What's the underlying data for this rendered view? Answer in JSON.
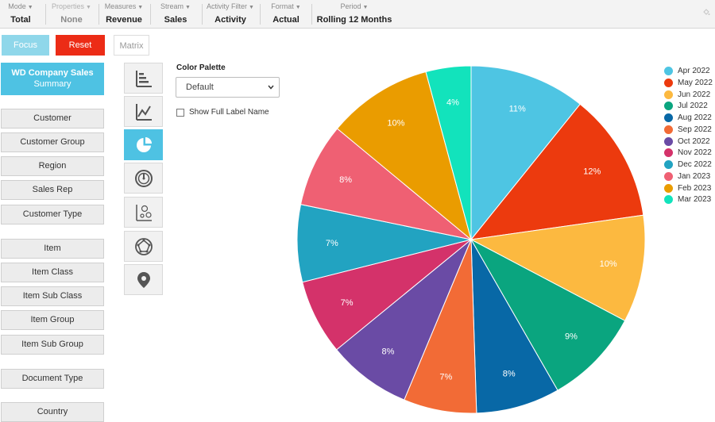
{
  "toolbar": {
    "items": [
      {
        "label": "Mode",
        "value": "Total",
        "disabled": false
      },
      {
        "label": "Properties",
        "value": "None",
        "disabled": true
      },
      {
        "label": "Measures",
        "value": "Revenue",
        "disabled": false
      },
      {
        "label": "Stream",
        "value": "Sales",
        "disabled": false
      },
      {
        "label": "Activity Filter",
        "value": "Activity",
        "disabled": false
      },
      {
        "label": "Format",
        "value": "Actual",
        "disabled": false
      },
      {
        "label": "Period",
        "value": "Rolling 12 Months",
        "disabled": false
      }
    ]
  },
  "buttons": {
    "focus": "Focus",
    "reset": "Reset",
    "matrix": "Matrix"
  },
  "summary": {
    "line1": "WD Company Sales",
    "line2": "Summary"
  },
  "dimensions": {
    "group1": [
      "Customer",
      "Customer Group",
      "Region",
      "Sales Rep",
      "Customer Type"
    ],
    "group2": [
      "Item",
      "Item Class",
      "Item Sub Class",
      "Item Group",
      "Item Sub Group"
    ],
    "group3": [
      "Document Type"
    ],
    "group4": [
      "Country"
    ]
  },
  "chart_types": [
    {
      "icon": "bar-chart-icon",
      "active": false
    },
    {
      "icon": "line-chart-icon",
      "active": false
    },
    {
      "icon": "pie-chart-icon",
      "active": true
    },
    {
      "icon": "gauge-icon",
      "active": false
    },
    {
      "icon": "scatter-chart-icon",
      "active": false
    },
    {
      "icon": "radar-chart-icon",
      "active": false
    },
    {
      "icon": "map-pin-icon",
      "active": false
    }
  ],
  "palette": {
    "label": "Color Palette",
    "selected": "Default"
  },
  "show_full_label": {
    "label": "Show Full Label Name",
    "checked": false
  },
  "chart_data": {
    "type": "pie",
    "categories": [
      "Apr 2022",
      "May 2022",
      "Jun 2022",
      "Jul 2022",
      "Aug 2022",
      "Sep 2022",
      "Oct 2022",
      "Nov 2022",
      "Dec 2022",
      "Jan 2023",
      "Feb 2023",
      "Mar 2023"
    ],
    "values": [
      10.8,
      12.0,
      10.0,
      9.0,
      7.8,
      6.8,
      7.8,
      7.0,
      7.2,
      7.8,
      9.8,
      4.2
    ],
    "labels": [
      "11%",
      "12%",
      "10%",
      "9%",
      "8%",
      "7%",
      "8%",
      "7%",
      "7%",
      "8%",
      "10%",
      "4%"
    ],
    "colors": [
      "#4ec5e3",
      "#ec3a0e",
      "#fcb940",
      "#0aa57f",
      "#0868a6",
      "#f26b36",
      "#6a4ba5",
      "#d4326a",
      "#22a3c1",
      "#ef6073",
      "#ea9c00",
      "#12e3bc"
    ],
    "legend_position": "right"
  }
}
